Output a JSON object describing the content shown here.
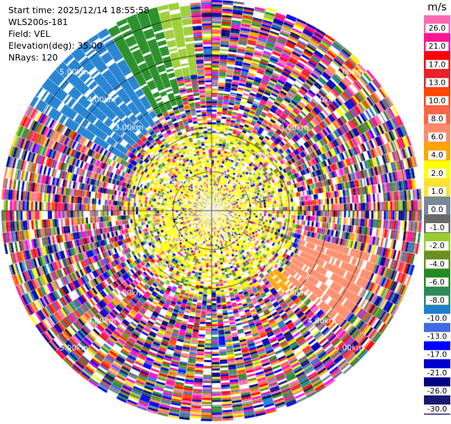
{
  "header": {
    "start_time": "Start time: 2025/12/14 18:55:58",
    "instrument": "WLS200s-181",
    "field": "Field: VEL",
    "elevation": "Elevation(deg): 35.00",
    "nrays": "NRays: 120"
  },
  "colorbar": {
    "unit": "m/s",
    "ticks": [
      "26.0",
      "21.0",
      "17.0",
      "13.0",
      "10.0",
      "8.0",
      "6.0",
      "4.0",
      "2.0",
      "1.0",
      "0.0",
      "-1.0",
      "-2.0",
      "-4.0",
      "-6.0",
      "-8.0",
      "-10.0",
      "-13.0",
      "-17.0",
      "-21.0",
      "-26.0",
      "-30.0"
    ],
    "colors": [
      "#ff69b4",
      "#ff1493",
      "#ff0000",
      "#e8202a",
      "#ff4500",
      "#ff6347",
      "#ff8c69",
      "#ffa500",
      "#ffff00",
      "#ffe135",
      "#778899",
      "#696969",
      "#9acd32",
      "#6b8e23",
      "#228b22",
      "#2e8b57",
      "#1e7fd0",
      "#4169e1",
      "#0000ff",
      "#0000cd",
      "#000080",
      "#191970"
    ]
  },
  "chart_data": {
    "type": "heatmap",
    "title": "",
    "field": "VEL",
    "unit": "m/s",
    "elevation_deg": 35.0,
    "n_rays": 120,
    "range_rings_km": [
      1.0,
      2.0,
      3.0,
      4.0,
      5.0
    ],
    "ring_labels": [
      "1.00km",
      "2.00km",
      "3.00km",
      "4.00km",
      "5.00km"
    ],
    "max_range_km": 5.4,
    "coherent_regions": [
      {
        "azimuth_deg": [
          300,
          330
        ],
        "range_km": [
          2.6,
          5.4
        ],
        "velocity_ms": -10.0
      },
      {
        "azimuth_deg": [
          330,
          345
        ],
        "range_km": [
          2.8,
          5.4
        ],
        "velocity_ms": -6.0
      },
      {
        "azimuth_deg": [
          345,
          352
        ],
        "range_km": [
          3.5,
          5.4
        ],
        "velocity_ms": -2.0
      },
      {
        "azimuth_deg": [
          105,
          130
        ],
        "range_km": [
          2.4,
          4.4
        ],
        "velocity_ms": 6.0
      },
      {
        "azimuth_deg": [
          130,
          140
        ],
        "range_km": [
          2.2,
          2.8
        ],
        "velocity_ms": 4.0
      }
    ],
    "near_field": {
      "range_km": [
        0.0,
        2.2
      ],
      "dominant_velocity_ms": [
        -2.0,
        2.0
      ]
    },
    "far_field": "noise"
  }
}
